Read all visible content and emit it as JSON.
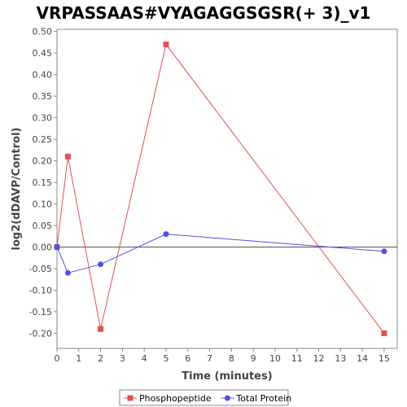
{
  "chart_data": {
    "type": "line",
    "title": "VRPASSAAS#VYAGAGGSGSR(+ 3)_v1",
    "xlabel": "Time (minutes)",
    "ylabel": "log2(dDAVP/Control)",
    "xlim": [
      0,
      15.6
    ],
    "ylim": [
      -0.235,
      0.505
    ],
    "x_ticks": [
      0,
      1,
      2,
      3,
      4,
      5,
      6,
      7,
      8,
      9,
      10,
      11,
      12,
      13,
      14,
      15
    ],
    "x_tick_labels": [
      "0",
      "1",
      "2",
      "3",
      "4",
      "5",
      "6",
      "7",
      "8",
      "9",
      "10",
      "11",
      "12",
      "13",
      "14",
      "15"
    ],
    "y_ticks": [
      -0.2,
      -0.15,
      -0.1,
      -0.05,
      0.0,
      0.05,
      0.1,
      0.15,
      0.2,
      0.25,
      0.3,
      0.35,
      0.4,
      0.45,
      0.5
    ],
    "y_tick_labels": [
      "-0.20",
      "-0.15",
      "-0.10",
      "-0.05",
      "0.00",
      "0.05",
      "0.10",
      "0.15",
      "0.20",
      "0.25",
      "0.30",
      "0.35",
      "0.40",
      "0.45",
      "0.50"
    ],
    "zero_line": true,
    "grid": false,
    "legend_position": "bottom",
    "series": [
      {
        "name": "Phosphopeptide",
        "color": "#e05050",
        "marker": "square",
        "x": [
          0,
          0.5,
          2,
          5,
          15
        ],
        "y": [
          0.0,
          0.21,
          -0.19,
          0.47,
          -0.2
        ]
      },
      {
        "name": "Total Protein",
        "color": "#5050e8",
        "marker": "circle",
        "x": [
          0,
          0.5,
          2,
          5,
          15
        ],
        "y": [
          0.0,
          -0.06,
          -0.04,
          0.03,
          -0.01
        ]
      }
    ]
  }
}
